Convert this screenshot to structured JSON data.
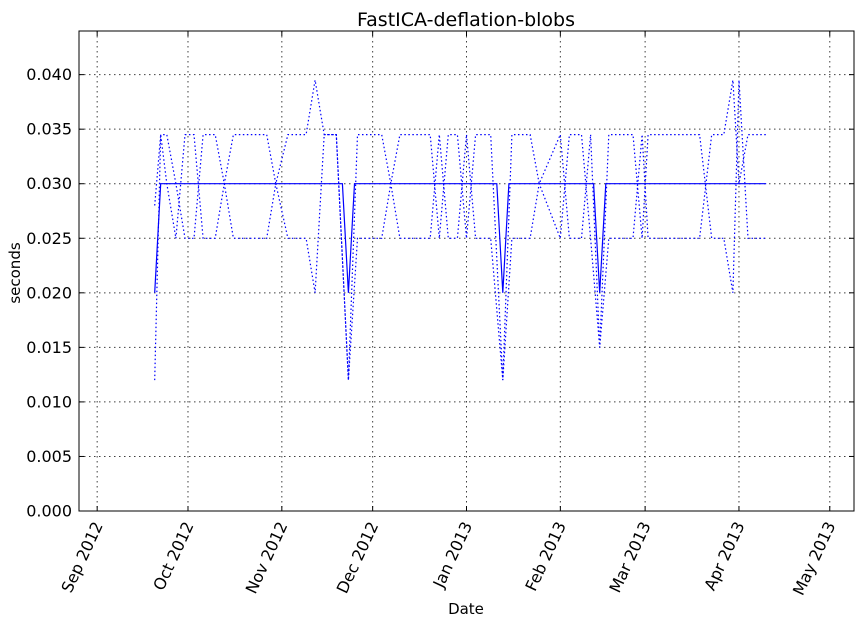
{
  "chart_data": {
    "type": "line",
    "title": "FastICA-deflation-blobs",
    "xlabel": "Date",
    "ylabel": "seconds",
    "ylim": [
      0,
      0.044
    ],
    "xlim": [
      "2012-08-26",
      "2013-05-09"
    ],
    "grid": true,
    "line_color": "#0000ff",
    "yticks": [
      0.0,
      0.005,
      0.01,
      0.015,
      0.02,
      0.025,
      0.03,
      0.035,
      0.04
    ],
    "ytick_labels": [
      "0.000",
      "0.005",
      "0.010",
      "0.015",
      "0.020",
      "0.025",
      "0.030",
      "0.035",
      "0.040"
    ],
    "xticks": [
      "2012-09-01",
      "2012-10-01",
      "2012-11-01",
      "2012-12-01",
      "2013-01-01",
      "2013-02-01",
      "2013-03-01",
      "2013-04-01",
      "2013-05-01"
    ],
    "xtick_labels": [
      "Sep 2012",
      "Oct 2012",
      "Nov 2012",
      "Dec 2012",
      "Jan 2013",
      "Feb 2013",
      "Mar 2013",
      "Apr 2013",
      "May 2013"
    ],
    "series": [
      {
        "style": "solid",
        "points": [
          [
            "2012-09-20",
            0.02
          ],
          [
            "2012-09-22",
            0.03
          ],
          [
            "2012-11-21",
            0.03
          ],
          [
            "2012-11-23",
            0.02
          ],
          [
            "2012-11-25",
            0.03
          ],
          [
            "2013-01-11",
            0.03
          ],
          [
            "2013-01-13",
            0.02
          ],
          [
            "2013-01-15",
            0.03
          ],
          [
            "2013-02-12",
            0.03
          ],
          [
            "2013-02-14",
            0.02
          ],
          [
            "2013-02-16",
            0.03
          ],
          [
            "2013-04-10",
            0.03
          ]
        ]
      },
      {
        "style": "dotted",
        "points": [
          [
            "2012-09-20",
            0.012
          ],
          [
            "2012-09-22",
            0.0345
          ],
          [
            "2012-09-24",
            0.0345
          ],
          [
            "2012-09-27",
            0.03
          ],
          [
            "2012-09-30",
            0.025
          ],
          [
            "2012-10-03",
            0.025
          ],
          [
            "2012-10-06",
            0.0345
          ],
          [
            "2012-10-10",
            0.0345
          ],
          [
            "2012-10-13",
            0.03
          ],
          [
            "2012-10-16",
            0.025
          ],
          [
            "2012-10-27",
            0.025
          ],
          [
            "2012-10-30",
            0.03
          ],
          [
            "2012-11-03",
            0.025
          ],
          [
            "2012-11-09",
            0.025
          ],
          [
            "2012-11-12",
            0.02
          ],
          [
            "2012-11-15",
            0.0345
          ],
          [
            "2012-11-19",
            0.0345
          ],
          [
            "2012-11-23",
            0.012
          ],
          [
            "2012-11-26",
            0.0345
          ],
          [
            "2012-12-04",
            0.0345
          ],
          [
            "2012-12-07",
            0.03
          ],
          [
            "2012-12-10",
            0.0345
          ],
          [
            "2012-12-20",
            0.0345
          ],
          [
            "2012-12-23",
            0.025
          ],
          [
            "2012-12-26",
            0.0345
          ],
          [
            "2012-12-29",
            0.0345
          ],
          [
            "2013-01-01",
            0.025
          ],
          [
            "2013-01-04",
            0.0345
          ],
          [
            "2013-01-09",
            0.0345
          ],
          [
            "2013-01-13",
            0.012
          ],
          [
            "2013-01-16",
            0.0345
          ],
          [
            "2013-01-22",
            0.0345
          ],
          [
            "2013-01-25",
            0.03
          ],
          [
            "2013-02-01",
            0.0345
          ],
          [
            "2013-02-04",
            0.025
          ],
          [
            "2013-02-08",
            0.025
          ],
          [
            "2013-02-11",
            0.0345
          ],
          [
            "2013-02-14",
            0.015
          ],
          [
            "2013-02-17",
            0.0345
          ],
          [
            "2013-02-25",
            0.0345
          ],
          [
            "2013-02-28",
            0.025
          ],
          [
            "2013-03-02",
            0.0345
          ],
          [
            "2013-03-19",
            0.0345
          ],
          [
            "2013-03-23",
            0.025
          ],
          [
            "2013-03-27",
            0.025
          ],
          [
            "2013-03-30",
            0.02
          ],
          [
            "2013-04-01",
            0.0395
          ],
          [
            "2013-04-04",
            0.025
          ],
          [
            "2013-04-10",
            0.025
          ]
        ]
      },
      {
        "style": "dotted",
        "points": [
          [
            "2012-09-20",
            0.028
          ],
          [
            "2012-09-22",
            0.0345
          ],
          [
            "2012-09-24",
            0.03
          ],
          [
            "2012-09-27",
            0.025
          ],
          [
            "2012-09-30",
            0.0345
          ],
          [
            "2012-10-03",
            0.0345
          ],
          [
            "2012-10-06",
            0.025
          ],
          [
            "2012-10-10",
            0.025
          ],
          [
            "2012-10-13",
            0.03
          ],
          [
            "2012-10-16",
            0.0345
          ],
          [
            "2012-10-27",
            0.0345
          ],
          [
            "2012-10-30",
            0.03
          ],
          [
            "2012-11-03",
            0.0345
          ],
          [
            "2012-11-09",
            0.0345
          ],
          [
            "2012-11-12",
            0.0395
          ],
          [
            "2012-11-15",
            0.0345
          ],
          [
            "2012-11-19",
            0.0345
          ],
          [
            "2012-11-23",
            0.012
          ],
          [
            "2012-11-26",
            0.025
          ],
          [
            "2012-12-04",
            0.025
          ],
          [
            "2012-12-07",
            0.03
          ],
          [
            "2012-12-10",
            0.025
          ],
          [
            "2012-12-20",
            0.025
          ],
          [
            "2012-12-23",
            0.0345
          ],
          [
            "2012-12-26",
            0.025
          ],
          [
            "2012-12-29",
            0.025
          ],
          [
            "2013-01-01",
            0.0345
          ],
          [
            "2013-01-04",
            0.025
          ],
          [
            "2013-01-09",
            0.025
          ],
          [
            "2013-01-13",
            0.012
          ],
          [
            "2013-01-16",
            0.025
          ],
          [
            "2013-01-22",
            0.025
          ],
          [
            "2013-01-25",
            0.03
          ],
          [
            "2013-02-01",
            0.025
          ],
          [
            "2013-02-04",
            0.0345
          ],
          [
            "2013-02-08",
            0.0345
          ],
          [
            "2013-02-11",
            0.025
          ],
          [
            "2013-02-14",
            0.015
          ],
          [
            "2013-02-17",
            0.025
          ],
          [
            "2013-02-25",
            0.025
          ],
          [
            "2013-02-28",
            0.0345
          ],
          [
            "2013-03-02",
            0.025
          ],
          [
            "2013-03-19",
            0.025
          ],
          [
            "2013-03-23",
            0.0345
          ],
          [
            "2013-03-27",
            0.0345
          ],
          [
            "2013-03-30",
            0.0395
          ],
          [
            "2013-04-01",
            0.03
          ],
          [
            "2013-04-04",
            0.0345
          ],
          [
            "2013-04-10",
            0.0345
          ]
        ]
      }
    ]
  }
}
